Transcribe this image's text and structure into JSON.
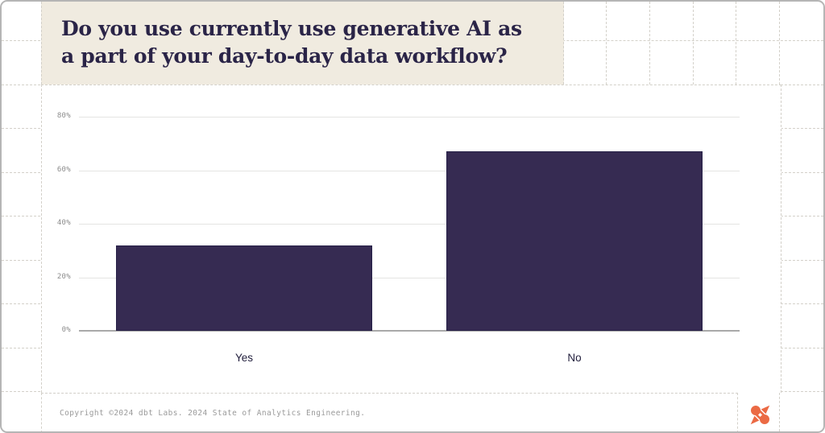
{
  "title": {
    "lines": [
      "Do you use currently use generative AI as",
      "a part of your day-to-day data workflow?"
    ]
  },
  "footer": {
    "copyright": "Copyright ©2024 dbt Labs. 2024 State of Analytics Engineering.",
    "logo_icon": "dbt-pinwheel-logo"
  },
  "colors": {
    "bar_fill": "#362B52",
    "bar_border": "#262047",
    "title_text": "#2A2447",
    "title_card_bg": "#F0EBE0",
    "logo_orange": "#EB6A44",
    "plot_gridline": "#E4E4E2",
    "axis_line": "#A9A9A9",
    "tick_text": "#8B8B8B",
    "footer_text": "#9A9A9A",
    "bg_grid_line": "#D3D0C9"
  },
  "chart_data": {
    "type": "bar",
    "title": "Do you use currently use generative AI as a part of your day-to-day data workflow?",
    "categories": [
      "Yes",
      "No"
    ],
    "values": [
      32,
      67
    ],
    "value_unit": "%",
    "xlabel": "",
    "ylabel": "",
    "ylim": [
      0,
      80
    ],
    "yticks": [
      0,
      20,
      40,
      60,
      80
    ],
    "ytick_labels": [
      "0%",
      "20%",
      "40%",
      "60%",
      "80%"
    ],
    "grid": true,
    "legend": false,
    "bar_color": "#362B52"
  }
}
